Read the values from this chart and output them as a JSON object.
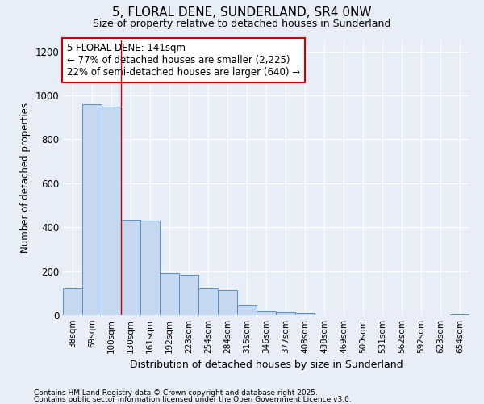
{
  "title1": "5, FLORAL DENE, SUNDERLAND, SR4 0NW",
  "title2": "Size of property relative to detached houses in Sunderland",
  "xlabel": "Distribution of detached houses by size in Sunderland",
  "ylabel": "Number of detached properties",
  "categories": [
    "38sqm",
    "69sqm",
    "100sqm",
    "130sqm",
    "161sqm",
    "192sqm",
    "223sqm",
    "254sqm",
    "284sqm",
    "315sqm",
    "346sqm",
    "377sqm",
    "408sqm",
    "438sqm",
    "469sqm",
    "500sqm",
    "531sqm",
    "562sqm",
    "592sqm",
    "623sqm",
    "654sqm"
  ],
  "values": [
    120,
    960,
    950,
    435,
    430,
    190,
    185,
    120,
    115,
    45,
    20,
    15,
    10,
    0,
    0,
    0,
    0,
    0,
    0,
    0,
    5
  ],
  "bar_color": "#c5d8f0",
  "bar_edge_color": "#5590c8",
  "background_color": "#e8eef8",
  "grid_color": "#ffffff",
  "red_line_x": 2.5,
  "annotation_line1": "5 FLORAL DENE: 141sqm",
  "annotation_line2": "← 77% of detached houses are smaller (2,225)",
  "annotation_line3": "22% of semi-detached houses are larger (640) →",
  "annotation_box_color": "#ffffff",
  "annotation_box_edge": "#cc0000",
  "ylim": [
    0,
    1250
  ],
  "yticks": [
    0,
    200,
    400,
    600,
    800,
    1000,
    1200
  ],
  "footer1": "Contains HM Land Registry data © Crown copyright and database right 2025.",
  "footer2": "Contains public sector information licensed under the Open Government Licence v3.0."
}
